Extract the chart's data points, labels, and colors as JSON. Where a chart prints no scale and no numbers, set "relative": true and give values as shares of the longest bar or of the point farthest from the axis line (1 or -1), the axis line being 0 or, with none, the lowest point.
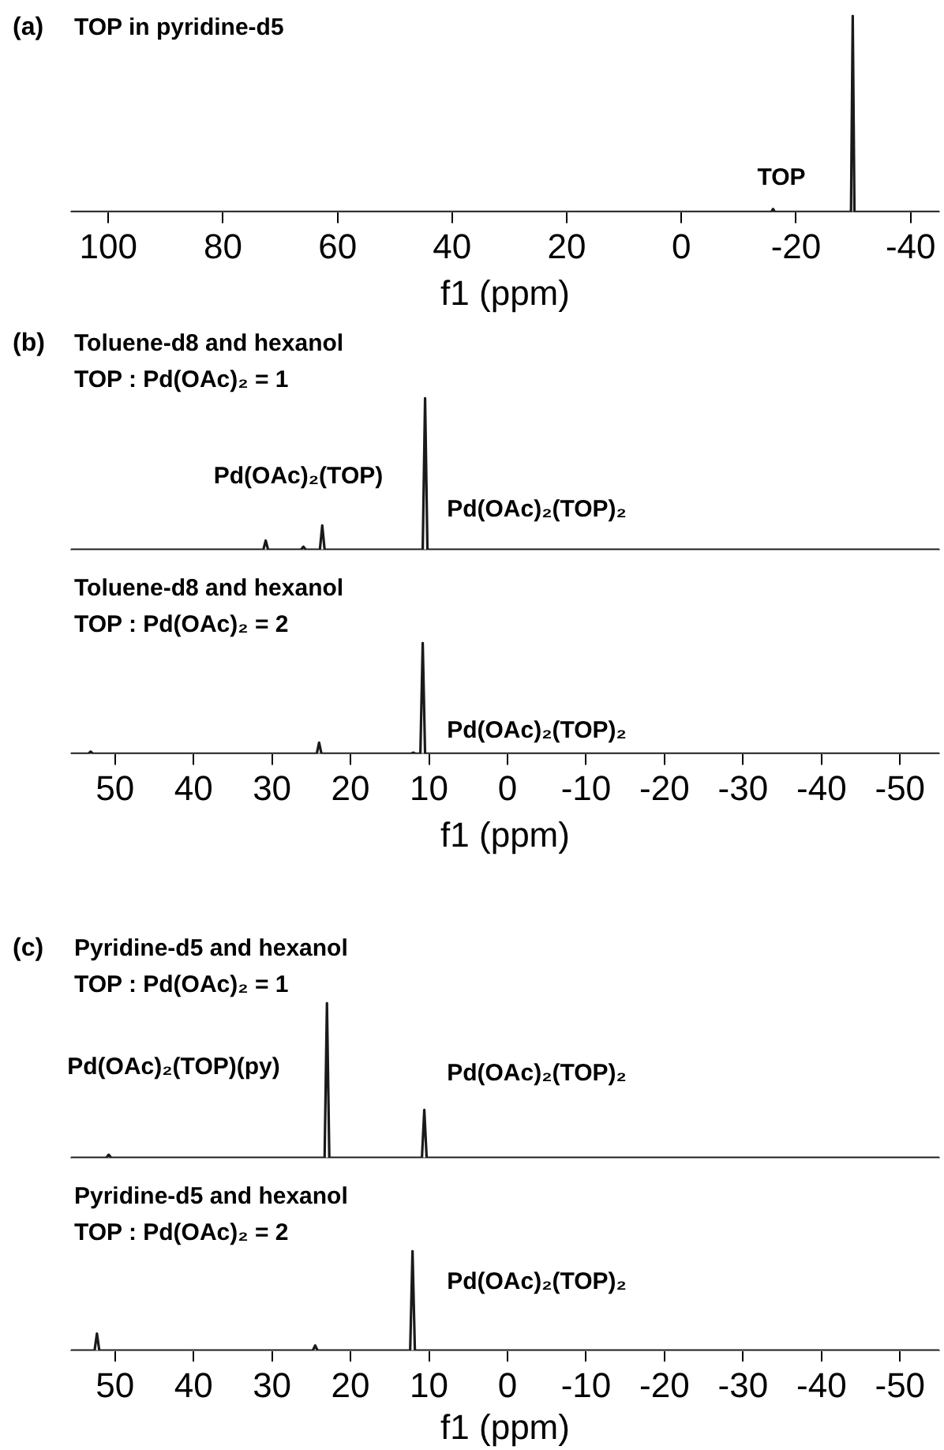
{
  "chart_data": [
    {
      "type": "line",
      "title": "TOP in pyridine-d5",
      "xlabel": "f1 (ppm)",
      "relative": true,
      "xlim": [
        106.5,
        -45
      ],
      "xticks": [
        100,
        80,
        60,
        40,
        20,
        0,
        -20,
        -40
      ],
      "x": [
        106.5,
        -15.7,
        -16,
        -16.3,
        -29.6,
        -29.9,
        -30.2,
        -45
      ],
      "series": [
        {
          "color": "#1a1a1a",
          "values": [
            0,
            0,
            0.015,
            0,
            0,
            1,
            0,
            0
          ]
        }
      ],
      "annotations": [
        "(a)",
        "TOP"
      ]
    },
    {
      "type": "line",
      "title": "Toluene-d8 and hexanol",
      "subtitle": "TOP : Pd(OAc)₂ = 1",
      "relative": true,
      "xlim": [
        55.6,
        -55
      ],
      "xticks": [
        50,
        40,
        30,
        20,
        10,
        0,
        -10,
        -20,
        -30,
        -40,
        -50
      ],
      "tick_labels": false,
      "x": [
        55.6,
        31.1,
        30.8,
        30.5,
        26.3,
        26,
        25.7,
        23.9,
        23.6,
        23.3,
        10.8,
        10.5,
        10.2,
        -55
      ],
      "series": [
        {
          "color": "#1a1a1a",
          "values": [
            0,
            0,
            0.06,
            0,
            0,
            0.02,
            0,
            0,
            0.16,
            0,
            0,
            1,
            0,
            0
          ]
        }
      ],
      "annotations": [
        "(b)",
        "Pd(OAc)₂(TOP)",
        "Pd(OAc)₂(TOP)₂"
      ]
    },
    {
      "type": "line",
      "title": "Toluene-d8 and hexanol",
      "subtitle": "TOP : Pd(OAc)₂ = 2",
      "xlabel": "f1 (ppm)",
      "relative": true,
      "xlim": [
        55.6,
        -55
      ],
      "xticks": [
        50,
        40,
        30,
        20,
        10,
        0,
        -10,
        -20,
        -30,
        -40,
        -50
      ],
      "x": [
        55.6,
        53.4,
        53.1,
        52.8,
        24.3,
        24,
        23.7,
        12.3,
        12,
        11.7,
        11.1,
        10.8,
        10.5,
        -55
      ],
      "series": [
        {
          "color": "#1a1a1a",
          "values": [
            0,
            0,
            0.02,
            0,
            0,
            0.1,
            0,
            0,
            0.01,
            0,
            0,
            1,
            0,
            0
          ]
        }
      ],
      "annotations": [
        "Pd(OAc)₂(TOP)₂"
      ]
    },
    {
      "type": "line",
      "title": "Pyridine-d5 and hexanol",
      "subtitle": "TOP : Pd(OAc)₂ = 1",
      "relative": true,
      "xlim": [
        55.6,
        -55
      ],
      "xticks": [
        50,
        40,
        30,
        20,
        10,
        0,
        -10,
        -20,
        -30,
        -40,
        -50
      ],
      "tick_labels": false,
      "x": [
        55.6,
        51.1,
        50.8,
        50.5,
        23.3,
        23,
        22.7,
        10.9,
        10.6,
        10.3,
        -55
      ],
      "series": [
        {
          "color": "#1a1a1a",
          "values": [
            0,
            0,
            0.02,
            0,
            0,
            1,
            0,
            0,
            0.31,
            0,
            0
          ]
        }
      ],
      "annotations": [
        "(c)",
        "Pd(OAc)₂(TOP)(py)",
        "Pd(OAc)₂(TOP)₂"
      ]
    },
    {
      "type": "line",
      "title": "Pyridine-d5 and hexanol",
      "subtitle": "TOP : Pd(OAc)₂ = 2",
      "xlabel": "f1 (ppm)",
      "relative": true,
      "xlim": [
        55.6,
        -55
      ],
      "xticks": [
        50,
        40,
        30,
        20,
        10,
        0,
        -10,
        -20,
        -30,
        -40,
        -50
      ],
      "x": [
        55.6,
        52.6,
        52.3,
        52,
        24.8,
        24.5,
        24.2,
        12.4,
        12.1,
        11.8,
        -55
      ],
      "series": [
        {
          "color": "#1a1a1a",
          "values": [
            0,
            0,
            0.17,
            0,
            0,
            0.05,
            0,
            0,
            1,
            0,
            0
          ]
        }
      ],
      "annotations": [
        "Pd(OAc)₂(TOP)₂"
      ]
    }
  ]
}
